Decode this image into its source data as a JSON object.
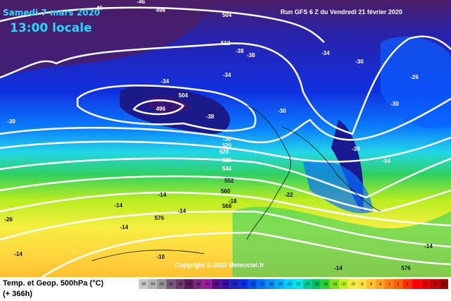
{
  "header": {
    "date": "Samedi 7 mars 2020",
    "time": "13:00 locale",
    "run": "Run GFS 6 Z du Vendredi 21 février 2020"
  },
  "copyright": "Copyright © 2020 Meteociel.fr",
  "footer": {
    "title": "Temp. et Geop. 500hPa (°C)",
    "lead": "(+ 366h)"
  },
  "contour_labels": [
    "-46",
    "496",
    "-46",
    "504",
    "512",
    "-38",
    "-38",
    "-34",
    "-30",
    "-26",
    "-34",
    "-34",
    "504",
    "496",
    "-38",
    "-30",
    "-30",
    "-30",
    "-30",
    "520",
    "528",
    "536",
    "544",
    "-38",
    "-34",
    "552",
    "560",
    "568",
    "-18",
    "-22",
    "-14",
    "-14",
    "-14",
    "576",
    "-14",
    "-26",
    "-14",
    "-10",
    "-14",
    "576",
    "-14"
  ],
  "scale": {
    "labels": [
      "-56",
      "-54",
      "-52",
      "-50",
      "-48",
      "-46",
      "-44",
      "-42",
      "-40",
      "-38",
      "-36",
      "-34",
      "-32",
      "-30",
      "-28",
      "-26",
      "-24",
      "-22",
      "-20",
      "-18",
      "-16",
      "-14",
      "-12",
      "-10",
      "-8",
      "-6",
      "-4",
      "-2",
      "0",
      "2",
      "4",
      "6",
      "8",
      "10"
    ],
    "colors": [
      "#c8c8c8",
      "#b4b4b4",
      "#969696",
      "#7a5a7a",
      "#6a3a6a",
      "#5a1a5a",
      "#782878",
      "#9a1a9a",
      "#5a0a8a",
      "#3a10aa",
      "#2020c8",
      "#1030e0",
      "#0050f0",
      "#0070ff",
      "#0090ff",
      "#00b0ff",
      "#00d0ff",
      "#00e8e8",
      "#00d0a0",
      "#00c060",
      "#30d030",
      "#80e020",
      "#c0f020",
      "#f0f040",
      "#ffe040",
      "#ffc030",
      "#ffa020",
      "#ff8010",
      "#ff6000",
      "#ff3000",
      "#ff0000",
      "#e00000",
      "#c00000",
      "#a00000"
    ]
  }
}
